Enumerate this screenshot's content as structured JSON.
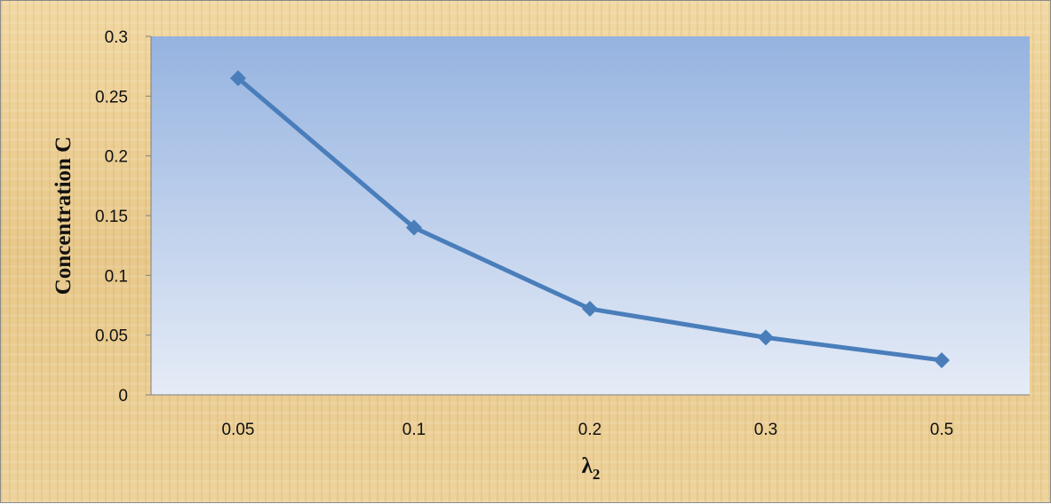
{
  "colors": {
    "series": "#4a7ebb",
    "marker": "#4a7ebb",
    "plot_top": "#95b3e0",
    "plot_bottom": "#e6ecf7",
    "axis": "#7f7f7f"
  },
  "chart_data": {
    "type": "line",
    "categories": [
      "0.05",
      "0.1",
      "0.2",
      "0.3",
      "0.5"
    ],
    "series": [
      {
        "values": [
          0.265,
          0.14,
          0.072,
          0.048,
          0.029
        ]
      }
    ],
    "xlabel": "λ",
    "xlabel_subscript": "2",
    "ylabel": "Concentration C",
    "ylim": [
      0,
      0.3
    ],
    "yticks": [
      "0",
      "0.05",
      "0.1",
      "0.15",
      "0.2",
      "0.25",
      "0.3"
    ],
    "marker": "diamond",
    "grid": false,
    "legend": "none"
  }
}
